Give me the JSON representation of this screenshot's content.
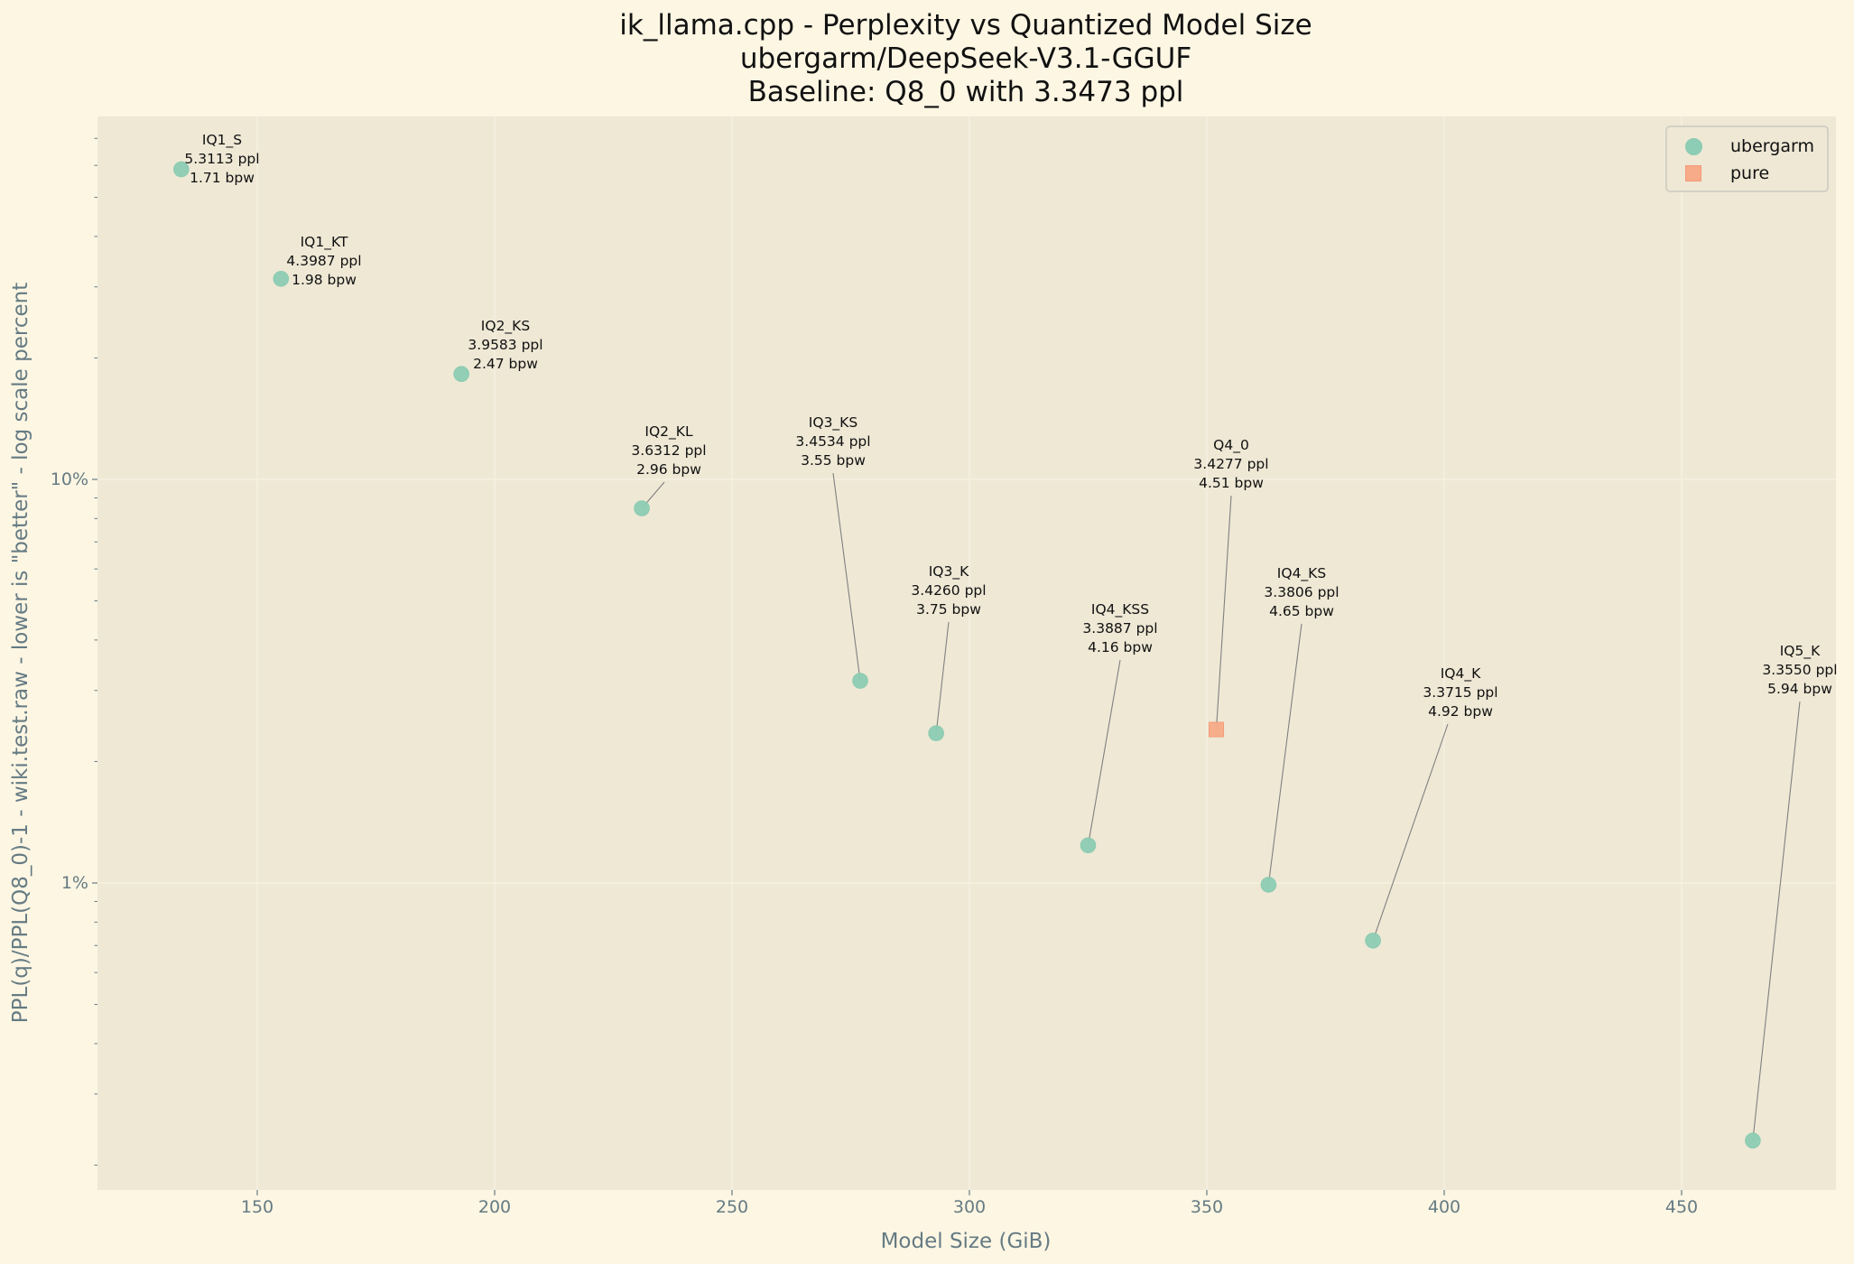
{
  "title": {
    "line1": "ik_llama.cpp - Perplexity vs Quantized Model Size",
    "line2": "ubergarm/DeepSeek-V3.1-GGUF",
    "line3": "Baseline: Q8_0 with 3.3473 ppl"
  },
  "axes": {
    "xlabel": "Model Size (GiB)",
    "ylabel": "PPL(q)/PPL(Q8_0)-1 - wiki.test.raw - lower is \"better\" - log scale percent",
    "xticks": [
      "150",
      "200",
      "250",
      "300",
      "350",
      "400",
      "450"
    ],
    "yticks": [
      "10%",
      "1%"
    ]
  },
  "legend": {
    "items": [
      {
        "label": "ubergarm",
        "marker": "circle",
        "color": "#8ecdb5"
      },
      {
        "label": "pure",
        "marker": "square",
        "color": "#f8ab88"
      }
    ]
  },
  "annotations": [
    {
      "name": "IQ1_S",
      "ppl": "5.3113 ppl",
      "bpw": "1.71 bpw"
    },
    {
      "name": "IQ1_KT",
      "ppl": "4.3987 ppl",
      "bpw": "1.98 bpw"
    },
    {
      "name": "IQ2_KS",
      "ppl": "3.9583 ppl",
      "bpw": "2.47 bpw"
    },
    {
      "name": "IQ2_KL",
      "ppl": "3.6312 ppl",
      "bpw": "2.96 bpw"
    },
    {
      "name": "IQ3_KS",
      "ppl": "3.4534 ppl",
      "bpw": "3.55 bpw"
    },
    {
      "name": "IQ3_K",
      "ppl": "3.4260 ppl",
      "bpw": "3.75 bpw"
    },
    {
      "name": "IQ4_KSS",
      "ppl": "3.3887 ppl",
      "bpw": "4.16 bpw"
    },
    {
      "name": "Q4_0",
      "ppl": "3.4277 ppl",
      "bpw": "4.51 bpw"
    },
    {
      "name": "IQ4_KS",
      "ppl": "3.3806 ppl",
      "bpw": "4.65 bpw"
    },
    {
      "name": "IQ4_K",
      "ppl": "3.3715 ppl",
      "bpw": "4.92 bpw"
    },
    {
      "name": "IQ5_K",
      "ppl": "3.3550 ppl",
      "bpw": "5.94 bpw"
    }
  ],
  "chart_data": {
    "type": "scatter",
    "title": "ik_llama.cpp - Perplexity vs Quantized Model Size\nubergarm/DeepSeek-V3.1-GGUF\nBaseline: Q8_0 with 3.3473 ppl",
    "xlabel": "Model Size (GiB)",
    "ylabel": "PPL(q)/PPL(Q8_0)-1 - wiki.test.raw - lower is \"better\" - log scale percent",
    "xlim": [
      115,
      482
    ],
    "ylim": [
      0.17,
      80
    ],
    "yscale": "log",
    "grid": true,
    "legend_position": "upper right",
    "baseline": {
      "quant": "Q8_0",
      "ppl": 3.3473
    },
    "series": [
      {
        "name": "ubergarm",
        "marker": "circle",
        "color": "#8ecdb5",
        "points": [
          {
            "label": "IQ1_S",
            "x": 134,
            "y": 58.67,
            "ppl": 5.3113,
            "bpw": 1.71
          },
          {
            "label": "IQ1_KT",
            "x": 155,
            "y": 31.41,
            "ppl": 4.3987,
            "bpw": 1.98
          },
          {
            "label": "IQ2_KS",
            "x": 193,
            "y": 18.25,
            "ppl": 3.9583,
            "bpw": 2.47
          },
          {
            "label": "IQ2_KL",
            "x": 231,
            "y": 8.48,
            "ppl": 3.6312,
            "bpw": 2.96
          },
          {
            "label": "IQ3_KS",
            "x": 277,
            "y": 3.17,
            "ppl": 3.4534,
            "bpw": 3.55
          },
          {
            "label": "IQ3_K",
            "x": 293,
            "y": 2.35,
            "ppl": 3.426,
            "bpw": 3.75
          },
          {
            "label": "IQ4_KSS",
            "x": 325,
            "y": 1.24,
            "ppl": 3.3887,
            "bpw": 4.16
          },
          {
            "label": "IQ4_KS",
            "x": 363,
            "y": 0.99,
            "ppl": 3.3806,
            "bpw": 4.65
          },
          {
            "label": "IQ4_K",
            "x": 385,
            "y": 0.72,
            "ppl": 3.3715,
            "bpw": 4.92
          },
          {
            "label": "IQ5_K",
            "x": 465,
            "y": 0.23,
            "ppl": 3.355,
            "bpw": 5.94
          }
        ]
      },
      {
        "name": "pure",
        "marker": "square",
        "color": "#f8ab88",
        "points": [
          {
            "label": "Q4_0",
            "x": 352,
            "y": 2.4,
            "ppl": 3.4277,
            "bpw": 4.51
          }
        ]
      }
    ]
  }
}
